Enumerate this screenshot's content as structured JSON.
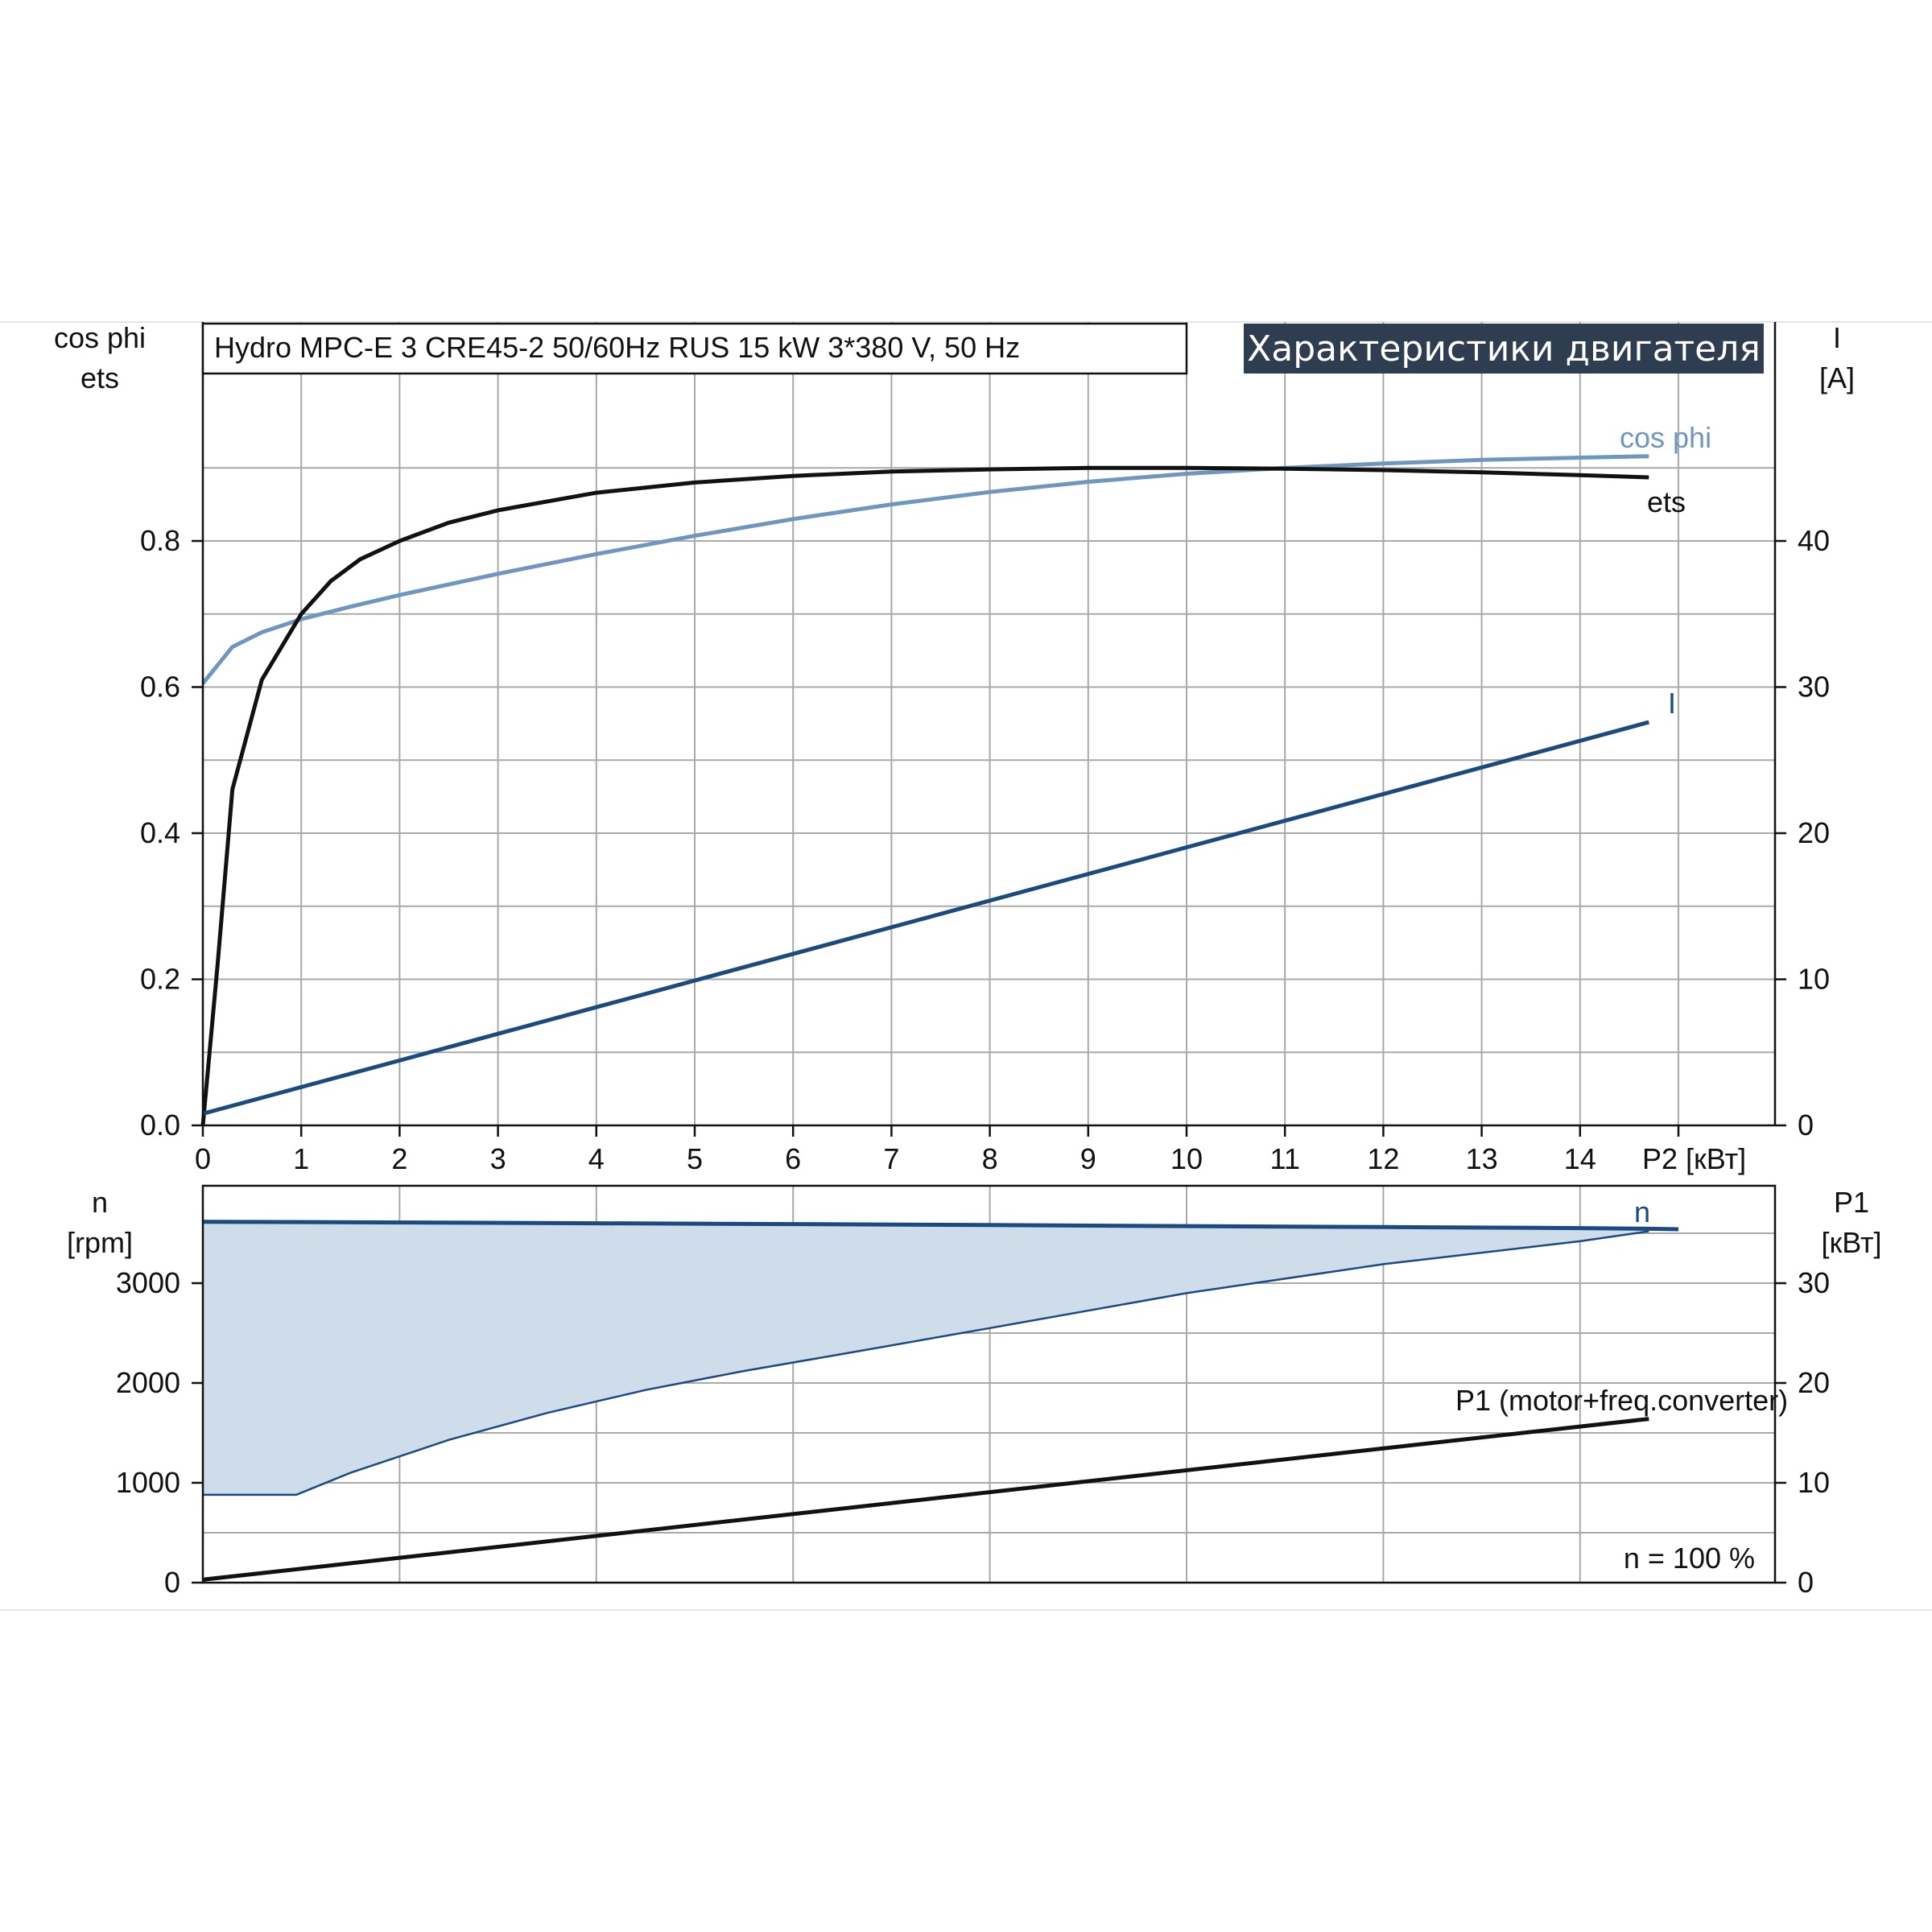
{
  "header": {
    "title": "Hydro MPC-E 3 CRE45-2 50/60Hz RUS   15 kW   3*380 V, 50 Hz",
    "badge": "Характеристики двигателя"
  },
  "colors": {
    "ets": "#111111",
    "cos_phi": "#6f96c0",
    "current": "#1a4a80",
    "speed": "#1a4a80",
    "speed_band": "#cfdcea",
    "p1": "#111111",
    "badge_bg": "#2e3d50",
    "grid": "#a9a9a9"
  },
  "chart_data": [
    {
      "id": "top",
      "type": "line",
      "x_label": "P2 [кВт]",
      "xlim": [
        0,
        16
      ],
      "x_ticks": [
        "0",
        "1",
        "2",
        "3",
        "4",
        "5",
        "6",
        "7",
        "8",
        "9",
        "10",
        "11",
        "12",
        "13",
        "14"
      ],
      "left_axis": {
        "label_line1": "cos phi",
        "label_line2": "ets",
        "ylim": [
          0,
          0.9
        ],
        "ticks": [
          "0.0",
          "0.2",
          "0.4",
          "0.6",
          "0.8"
        ]
      },
      "right_axis": {
        "label_line1": "I",
        "label_line2": "[A]",
        "ylim": [
          0,
          45
        ],
        "ticks": [
          "0",
          "10",
          "20",
          "30",
          "40"
        ]
      },
      "grid": true,
      "series": [
        {
          "name": "ets",
          "axis": "left",
          "x": [
            0,
            0.15,
            0.3,
            0.6,
            1.0,
            1.3,
            1.6,
            2.0,
            2.5,
            3.0,
            4.0,
            5.0,
            6.0,
            7.0,
            8.0,
            9.0,
            10.0,
            11.0,
            12.0,
            13.0,
            14.0,
            14.7
          ],
          "y": [
            0.0,
            0.22,
            0.46,
            0.61,
            0.7,
            0.745,
            0.775,
            0.8,
            0.825,
            0.842,
            0.866,
            0.88,
            0.889,
            0.895,
            0.898,
            0.9,
            0.9,
            0.899,
            0.897,
            0.894,
            0.89,
            0.887
          ]
        },
        {
          "name": "cos phi",
          "axis": "left",
          "x": [
            0,
            0.3,
            0.6,
            1.0,
            1.5,
            2.0,
            3.0,
            4.0,
            5.0,
            6.0,
            7.0,
            8.0,
            9.0,
            10.0,
            11.0,
            12.0,
            13.0,
            14.0,
            14.7
          ],
          "y": [
            0.605,
            0.655,
            0.675,
            0.693,
            0.71,
            0.726,
            0.755,
            0.782,
            0.807,
            0.83,
            0.85,
            0.867,
            0.881,
            0.892,
            0.9,
            0.906,
            0.911,
            0.914,
            0.916
          ]
        },
        {
          "name": "I",
          "axis": "right",
          "x": [
            0,
            14.7
          ],
          "y": [
            0.8,
            27.6
          ]
        }
      ]
    },
    {
      "id": "bottom",
      "type": "area",
      "xlim": [
        0,
        16
      ],
      "left_axis": {
        "label_line1": "n",
        "label_line2": "[rpm]",
        "ylim": [
          0,
          4000
        ],
        "ticks": [
          "0",
          "1000",
          "2000",
          "3000"
        ]
      },
      "right_axis": {
        "label_line1": "P1",
        "label_line2": "[кВт]",
        "ylim": [
          0,
          40
        ],
        "ticks": [
          "0",
          "10",
          "20",
          "30"
        ]
      },
      "grid": true,
      "annotation": "n = 100 %",
      "series": [
        {
          "name": "n",
          "axis": "left",
          "x": [
            0,
            2,
            4,
            6,
            8,
            10,
            12,
            14,
            14.7,
            15
          ],
          "y": [
            3615,
            3608,
            3600,
            3592,
            3582,
            3572,
            3562,
            3552,
            3545,
            3540
          ]
        },
        {
          "name": "n_min",
          "axis": "left",
          "x": [
            0,
            0.95,
            1.5,
            2.5,
            3.5,
            4.5,
            5.5,
            6.5,
            8,
            10,
            12,
            14,
            14.7
          ],
          "y": [
            880,
            880,
            1100,
            1430,
            1700,
            1930,
            2120,
            2290,
            2550,
            2900,
            3190,
            3420,
            3520
          ]
        },
        {
          "name": "P1 (motor+freq.converter)",
          "axis": "right",
          "x": [
            0,
            14.7
          ],
          "y": [
            0.3,
            16.4
          ]
        }
      ]
    }
  ]
}
